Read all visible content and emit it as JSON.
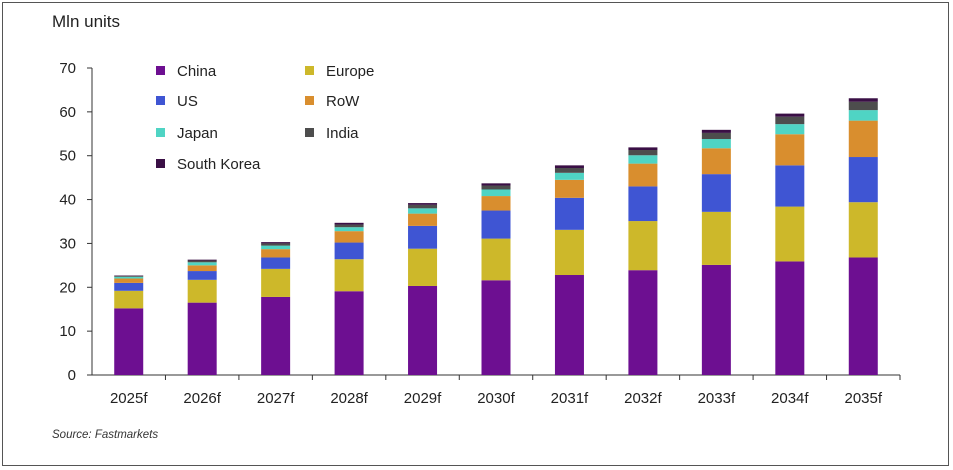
{
  "chart_data": {
    "type": "bar",
    "stacked": true,
    "ylabel": "Mln units",
    "source": "Source: Fastmarkets",
    "ylim": [
      0,
      70
    ],
    "yticks": [
      0,
      10,
      20,
      30,
      40,
      50,
      60,
      70
    ],
    "categories": [
      "2025f",
      "2026f",
      "2027f",
      "2028f",
      "2029f",
      "2030f",
      "2031f",
      "2032f",
      "2033f",
      "2034f",
      "2035f"
    ],
    "legend_position": "top-left",
    "series": [
      {
        "name": "China",
        "color": "#6d0f91",
        "values": [
          15.2,
          16.5,
          17.8,
          19.1,
          20.3,
          21.6,
          22.8,
          23.9,
          25.1,
          25.9,
          26.8
        ]
      },
      {
        "name": "Europe",
        "color": "#cdb82a",
        "values": [
          4.0,
          5.2,
          6.4,
          7.3,
          8.5,
          9.5,
          10.3,
          11.2,
          12.1,
          12.5,
          12.6
        ]
      },
      {
        "name": "US",
        "color": "#3f55d3",
        "values": [
          1.8,
          2.0,
          2.6,
          3.8,
          5.2,
          6.4,
          7.3,
          7.9,
          8.6,
          9.4,
          10.3
        ]
      },
      {
        "name": "RoW",
        "color": "#d98e2e",
        "values": [
          1.0,
          1.3,
          1.9,
          2.6,
          2.8,
          3.3,
          4.1,
          5.2,
          5.9,
          7.1,
          8.3
        ]
      },
      {
        "name": "Japan",
        "color": "#4fd4c4",
        "values": [
          0.4,
          0.7,
          0.8,
          0.9,
          1.2,
          1.5,
          1.6,
          1.9,
          2.1,
          2.3,
          2.4
        ]
      },
      {
        "name": "India",
        "color": "#4d4d4d",
        "values": [
          0.2,
          0.4,
          0.5,
          0.6,
          0.8,
          0.9,
          1.1,
          1.2,
          1.4,
          1.7,
          1.9
        ]
      },
      {
        "name": "South Korea",
        "color": "#3a0f45",
        "values": [
          0.1,
          0.2,
          0.3,
          0.4,
          0.4,
          0.5,
          0.6,
          0.6,
          0.7,
          0.7,
          0.8
        ]
      }
    ]
  }
}
